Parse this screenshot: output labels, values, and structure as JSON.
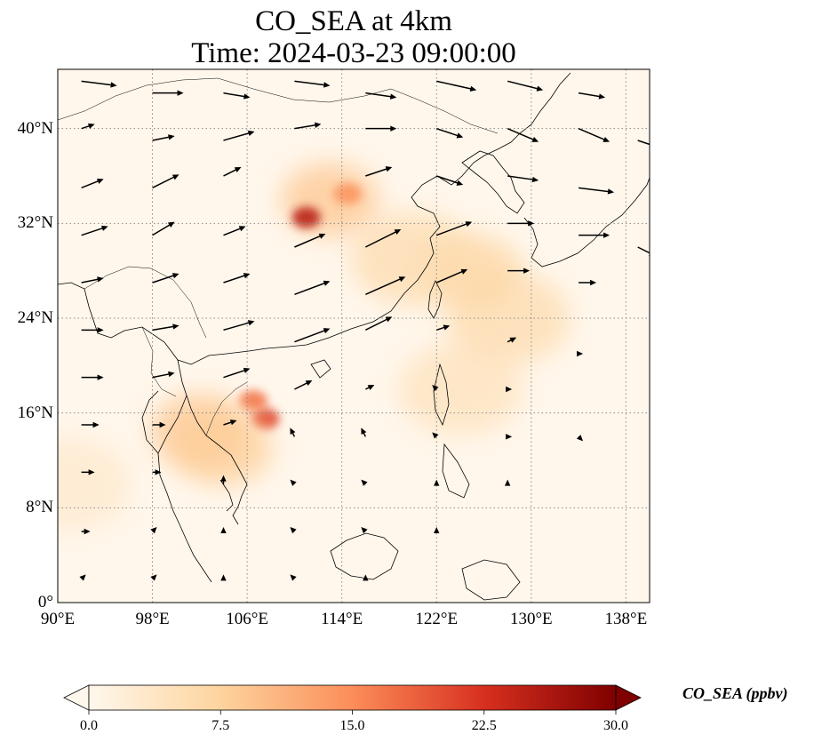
{
  "title": {
    "line1": "CO_SEA at 4km",
    "line2": "Time: 2024-03-23 09:00:00"
  },
  "map": {
    "projection": "PlateCarree",
    "lon_range": [
      90,
      140
    ],
    "lat_range": [
      0,
      45
    ],
    "gridlines": "dotted",
    "coastlines": true,
    "x_ticks": [
      {
        "value": 90,
        "label": "90°E"
      },
      {
        "value": 98,
        "label": "98°E"
      },
      {
        "value": 106,
        "label": "106°E"
      },
      {
        "value": 114,
        "label": "114°E"
      },
      {
        "value": 122,
        "label": "122°E"
      },
      {
        "value": 130,
        "label": "130°E"
      },
      {
        "value": 138,
        "label": "138°E"
      }
    ],
    "y_ticks": [
      {
        "value": 0,
        "label": "0°"
      },
      {
        "value": 8,
        "label": "8°N"
      },
      {
        "value": 16,
        "label": "16°N"
      },
      {
        "value": 24,
        "label": "24°N"
      },
      {
        "value": 32,
        "label": "32°N"
      },
      {
        "value": 40,
        "label": "40°N"
      }
    ]
  },
  "colorbar": {
    "label": "CO_SEA (ppbv)",
    "colormap": "OrRd",
    "min": 0,
    "max": 30,
    "extend": "both",
    "colors": [
      "#fff7ec",
      "#fdd49e",
      "#fc8d59",
      "#d7301f",
      "#7f0000"
    ],
    "ticks": [
      {
        "value": 0,
        "label": "0.0"
      },
      {
        "value": 7.5,
        "label": "7.5"
      },
      {
        "value": 15,
        "label": "15.0"
      },
      {
        "value": 22.5,
        "label": "22.5"
      },
      {
        "value": 30,
        "label": "30.0"
      }
    ]
  },
  "plumes": [
    {
      "lon": 124,
      "lat": 18,
      "value": 4.5
    },
    {
      "lon": 128,
      "lat": 24,
      "value": 6
    },
    {
      "lon": 125,
      "lat": 28,
      "value": 7
    },
    {
      "lon": 120,
      "lat": 29,
      "value": 6
    },
    {
      "lon": 113,
      "lat": 34,
      "value": 9
    },
    {
      "lon": 111,
      "lat": 32.5,
      "value": 25
    },
    {
      "lon": 114.5,
      "lat": 34.5,
      "value": 14
    },
    {
      "lon": 107.5,
      "lat": 15.5,
      "value": 21
    },
    {
      "lon": 106.5,
      "lat": 17,
      "value": 17
    },
    {
      "lon": 102,
      "lat": 14.5,
      "value": 9
    },
    {
      "lon": 104,
      "lat": 13,
      "value": 8
    },
    {
      "lon": 91,
      "lat": 10,
      "value": 3
    }
  ],
  "wind": [
    {
      "lon": 92,
      "lat": 44,
      "u": 8,
      "v": -1
    },
    {
      "lon": 98,
      "lat": 43,
      "u": 7,
      "v": 0
    },
    {
      "lon": 104,
      "lat": 43,
      "u": 6,
      "v": -1
    },
    {
      "lon": 110,
      "lat": 44,
      "u": 8,
      "v": -1
    },
    {
      "lon": 116,
      "lat": 43,
      "u": 7,
      "v": -1
    },
    {
      "lon": 122,
      "lat": 44,
      "u": 9,
      "v": -2
    },
    {
      "lon": 128,
      "lat": 44,
      "u": 8,
      "v": -2
    },
    {
      "lon": 134,
      "lat": 43,
      "u": 6,
      "v": -1
    },
    {
      "lon": 92,
      "lat": 40,
      "u": 3,
      "v": 1
    },
    {
      "lon": 98,
      "lat": 39,
      "u": 5,
      "v": 1
    },
    {
      "lon": 104,
      "lat": 39,
      "u": 7,
      "v": 2
    },
    {
      "lon": 110,
      "lat": 40,
      "u": 6,
      "v": 1
    },
    {
      "lon": 116,
      "lat": 40,
      "u": 7,
      "v": 0
    },
    {
      "lon": 122,
      "lat": 40,
      "u": 6,
      "v": -2
    },
    {
      "lon": 128,
      "lat": 40,
      "u": 7,
      "v": -3
    },
    {
      "lon": 134,
      "lat": 40,
      "u": 7,
      "v": -3
    },
    {
      "lon": 139,
      "lat": 39,
      "u": 6,
      "v": -2
    },
    {
      "lon": 92,
      "lat": 35,
      "u": 5,
      "v": 2
    },
    {
      "lon": 98,
      "lat": 35,
      "u": 6,
      "v": 3
    },
    {
      "lon": 104,
      "lat": 36,
      "u": 4,
      "v": 2
    },
    {
      "lon": 116,
      "lat": 36,
      "u": 6,
      "v": 2
    },
    {
      "lon": 122,
      "lat": 36,
      "u": 6,
      "v": -2
    },
    {
      "lon": 128,
      "lat": 36,
      "u": 7,
      "v": -1
    },
    {
      "lon": 134,
      "lat": 35,
      "u": 8,
      "v": -1
    },
    {
      "lon": 92,
      "lat": 31,
      "u": 6,
      "v": 2
    },
    {
      "lon": 98,
      "lat": 31,
      "u": 5,
      "v": 3
    },
    {
      "lon": 104,
      "lat": 31,
      "u": 5,
      "v": 2
    },
    {
      "lon": 110,
      "lat": 30,
      "u": 7,
      "v": 3
    },
    {
      "lon": 116,
      "lat": 30,
      "u": 8,
      "v": 4
    },
    {
      "lon": 122,
      "lat": 31,
      "u": 8,
      "v": 3
    },
    {
      "lon": 128,
      "lat": 32,
      "u": 6,
      "v": 0
    },
    {
      "lon": 134,
      "lat": 31,
      "u": 7,
      "v": 0
    },
    {
      "lon": 139,
      "lat": 30,
      "u": 4,
      "v": -2
    },
    {
      "lon": 92,
      "lat": 27,
      "u": 5,
      "v": 1
    },
    {
      "lon": 98,
      "lat": 27,
      "u": 6,
      "v": 2
    },
    {
      "lon": 104,
      "lat": 27,
      "u": 6,
      "v": 2
    },
    {
      "lon": 110,
      "lat": 26,
      "u": 8,
      "v": 3
    },
    {
      "lon": 116,
      "lat": 26,
      "u": 9,
      "v": 4
    },
    {
      "lon": 122,
      "lat": 27,
      "u": 7,
      "v": 3
    },
    {
      "lon": 128,
      "lat": 28,
      "u": 5,
      "v": 0
    },
    {
      "lon": 134,
      "lat": 27,
      "u": 4,
      "v": 0
    },
    {
      "lon": 92,
      "lat": 23,
      "u": 5,
      "v": 0
    },
    {
      "lon": 98,
      "lat": 23,
      "u": 6,
      "v": 1
    },
    {
      "lon": 104,
      "lat": 23,
      "u": 7,
      "v": 2
    },
    {
      "lon": 110,
      "lat": 22,
      "u": 8,
      "v": 3
    },
    {
      "lon": 116,
      "lat": 23,
      "u": 6,
      "v": 3
    },
    {
      "lon": 122,
      "lat": 23,
      "u": 3,
      "v": 1
    },
    {
      "lon": 128,
      "lat": 22,
      "u": 2,
      "v": 1
    },
    {
      "lon": 134,
      "lat": 21,
      "u": 1,
      "v": 0
    },
    {
      "lon": 92,
      "lat": 19,
      "u": 5,
      "v": 0
    },
    {
      "lon": 98,
      "lat": 19,
      "u": 5,
      "v": 1
    },
    {
      "lon": 104,
      "lat": 19,
      "u": 6,
      "v": 2
    },
    {
      "lon": 110,
      "lat": 18,
      "u": 4,
      "v": 2
    },
    {
      "lon": 116,
      "lat": 18,
      "u": 2,
      "v": 1
    },
    {
      "lon": 122,
      "lat": 18,
      "u": -1,
      "v": 1
    },
    {
      "lon": 128,
      "lat": 18,
      "u": 1,
      "v": 0
    },
    {
      "lon": 92,
      "lat": 15,
      "u": 4,
      "v": 0
    },
    {
      "lon": 98,
      "lat": 15,
      "u": 3,
      "v": 0
    },
    {
      "lon": 104,
      "lat": 15,
      "u": 3,
      "v": 1
    },
    {
      "lon": 110,
      "lat": 14,
      "u": -1,
      "v": 2
    },
    {
      "lon": 116,
      "lat": 14,
      "u": -1,
      "v": 2
    },
    {
      "lon": 122,
      "lat": 14,
      "u": -1,
      "v": 1
    },
    {
      "lon": 128,
      "lat": 14,
      "u": 1,
      "v": 0
    },
    {
      "lon": 134,
      "lat": 14,
      "u": 1,
      "v": -1
    },
    {
      "lon": 92,
      "lat": 11,
      "u": 3,
      "v": 0
    },
    {
      "lon": 98,
      "lat": 11,
      "u": 2,
      "v": 0
    },
    {
      "lon": 104,
      "lat": 10,
      "u": 0,
      "v": 2
    },
    {
      "lon": 110,
      "lat": 10,
      "u": -1,
      "v": 1
    },
    {
      "lon": 116,
      "lat": 10,
      "u": -1,
      "v": 1
    },
    {
      "lon": 122,
      "lat": 10,
      "u": 0,
      "v": 1
    },
    {
      "lon": 128,
      "lat": 10,
      "u": 0,
      "v": 1
    },
    {
      "lon": 92,
      "lat": 6,
      "u": 2,
      "v": 0
    },
    {
      "lon": 98,
      "lat": 6,
      "u": 1,
      "v": 1
    },
    {
      "lon": 104,
      "lat": 6,
      "u": 0,
      "v": 1
    },
    {
      "lon": 110,
      "lat": 6,
      "u": -1,
      "v": 1
    },
    {
      "lon": 116,
      "lat": 6,
      "u": -1,
      "v": 1
    },
    {
      "lon": 122,
      "lat": 6,
      "u": 0,
      "v": 1
    },
    {
      "lon": 92,
      "lat": 2,
      "u": 1,
      "v": 1
    },
    {
      "lon": 98,
      "lat": 2,
      "u": 1,
      "v": 1
    },
    {
      "lon": 104,
      "lat": 2,
      "u": 0,
      "v": 1
    },
    {
      "lon": 110,
      "lat": 2,
      "u": -1,
      "v": 1
    },
    {
      "lon": 116,
      "lat": 2,
      "u": 0,
      "v": 1
    }
  ]
}
